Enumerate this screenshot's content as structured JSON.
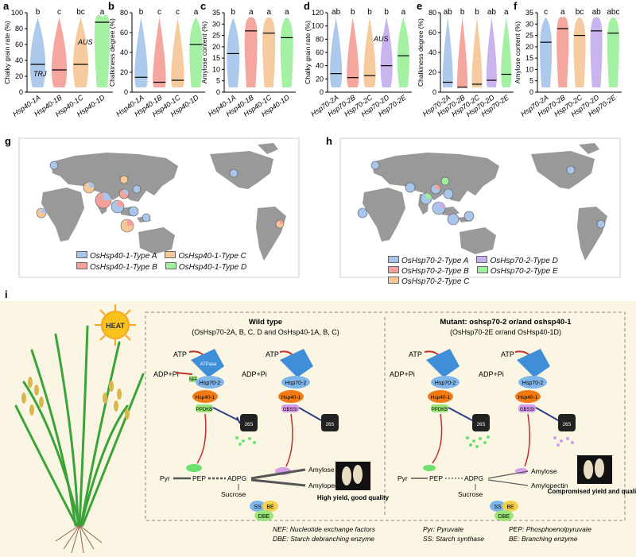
{
  "panel_labels": {
    "a": "a",
    "b": "b",
    "c": "c",
    "d": "d",
    "e": "e",
    "f": "f",
    "g": "g",
    "h": "h",
    "i": "i"
  },
  "colors": {
    "typeA": "#a9c6ea",
    "typeB": "#f3a19a",
    "typeC": "#f5c89a",
    "typeD": "#c7b0ec",
    "typeE": "#9ff09e",
    "map_land": "#999999",
    "bg_i": "#fbf6e3"
  },
  "chart_data": [
    {
      "panel": "a",
      "type": "violin",
      "ylabel": "Chalky grain rate (%)",
      "ylim": [
        0,
        100
      ],
      "yticks": [
        "0",
        "20",
        "40",
        "60",
        "80",
        "100"
      ],
      "categories": [
        "Hsp40-1A",
        "Hsp40-1B",
        "Hsp40-1C",
        "Hsp40-1D"
      ],
      "medians": [
        35,
        28,
        35,
        88
      ],
      "significance": [
        "b",
        "c",
        "bc",
        "a"
      ],
      "annotations": [
        "TRJ",
        "AUS"
      ]
    },
    {
      "panel": "b",
      "type": "violin",
      "ylabel": "Chalkiness degree (%)",
      "ylim": [
        0,
        80
      ],
      "yticks": [
        "0",
        "20",
        "40",
        "60",
        "80"
      ],
      "categories": [
        "Hsp40-1A",
        "Hsp40-1B",
        "Hsp40-1C",
        "Hsp40-1D"
      ],
      "medians": [
        15,
        10,
        12,
        48
      ],
      "significance": [
        "b",
        "c",
        "c",
        "a"
      ]
    },
    {
      "panel": "c",
      "type": "violin",
      "ylabel": "Amylose content (%)",
      "ylim": [
        0,
        35
      ],
      "yticks": [
        "0",
        "5",
        "10",
        "15",
        "20",
        "25",
        "30",
        "35"
      ],
      "categories": [
        "Hsp40-1A",
        "Hsp40-1B",
        "Hsp40-1C",
        "Hsp40-1D"
      ],
      "medians": [
        17,
        27,
        26,
        24
      ],
      "significance": [
        "b",
        "a",
        "a",
        "a"
      ]
    },
    {
      "panel": "d",
      "type": "violin",
      "ylabel": "Chalky grain rate (%)",
      "ylim": [
        0,
        120
      ],
      "yticks": [
        "0",
        "20",
        "40",
        "60",
        "80",
        "100",
        "120"
      ],
      "categories": [
        "Hsp70-2A",
        "Hsp70-2B",
        "Hsp70-2C",
        "Hsp70-2D",
        "Hsp70-2E"
      ],
      "medians": [
        28,
        22,
        25,
        40,
        55
      ],
      "significance": [
        "ab",
        "b",
        "b",
        "b",
        "a"
      ],
      "annotations": [
        "AUS"
      ]
    },
    {
      "panel": "e",
      "type": "violin",
      "ylabel": "Chalkiness degree (%)",
      "ylim": [
        0,
        80
      ],
      "yticks": [
        "0",
        "20",
        "40",
        "60",
        "80"
      ],
      "categories": [
        "Hsp70-2A",
        "Hsp70-2B",
        "Hsp70-2C",
        "Hsp70-2D",
        "Hsp70-2E"
      ],
      "medians": [
        10,
        5,
        8,
        12,
        18
      ],
      "significance": [
        "ab",
        "b",
        "b",
        "ab",
        "a"
      ]
    },
    {
      "panel": "f",
      "type": "violin",
      "ylabel": "Amylose content (%)",
      "ylim": [
        0,
        35
      ],
      "yticks": [
        "0",
        "5",
        "10",
        "15",
        "20",
        "25",
        "30",
        "35"
      ],
      "categories": [
        "Hsp70-2A",
        "Hsp70-2B",
        "Hsp70-2C",
        "Hsp70-2D",
        "Hsp70-2E"
      ],
      "medians": [
        22,
        28,
        25,
        27,
        26
      ],
      "significance": [
        "c",
        "a",
        "bc",
        "ab",
        "abc"
      ]
    }
  ],
  "legend_g": [
    "OsHsp40-1-Type A",
    "OsHsp40-1-Type B",
    "OsHsp40-1-Type C",
    "OsHsp40-1-Type D"
  ],
  "legend_h": [
    "OsHsp70-2-Type A",
    "OsHsp70-2-Type B",
    "OsHsp70-2-Type C",
    "OsHsp70-2-Type D",
    "OsHsp70-2-Type E"
  ],
  "mechanism": {
    "heat": "HEAT",
    "wt_title": "Wild type",
    "wt_sub": "(OsHsp70-2A, B, C, D and OsHsp40-1A, B, C)",
    "mut_title": "Mutant: oshsp70-2 or/and oshsp40-1",
    "mut_sub": "(OsHsp70-2E or/and OsHsp40-1D)",
    "atp": "ATP",
    "adp": "ADP+Pi",
    "nef": "NEF",
    "atpase": "ATPase",
    "hsp70": "Hsp70-2",
    "hsp40": "Hsp40-1",
    "ppdkb": "PPDKB",
    "gbssi": "GBSSI",
    "proteasome": "26S",
    "pyr": "Pyr",
    "pep": "PEP",
    "adpg": "ADPG",
    "sucrose": "Sucrose",
    "amylose": "Amylose",
    "amylopectin": "Amylopectin",
    "ss": "SS",
    "be": "BE",
    "dbe": "DBE",
    "wt_outcome": "High yield, good quality",
    "mut_outcome": "Compromised yield and quality"
  },
  "footnote": {
    "nef": "NEF: Nucleotide exchange factors",
    "dbe": "DBE: Starch debranching enzyme",
    "pyr": "Pyr: Pyruvate",
    "ss": "SS: Starch synthase",
    "pep": "PEP: Phosphoenolpyruvate",
    "be": "BE: Branching enzyme"
  }
}
